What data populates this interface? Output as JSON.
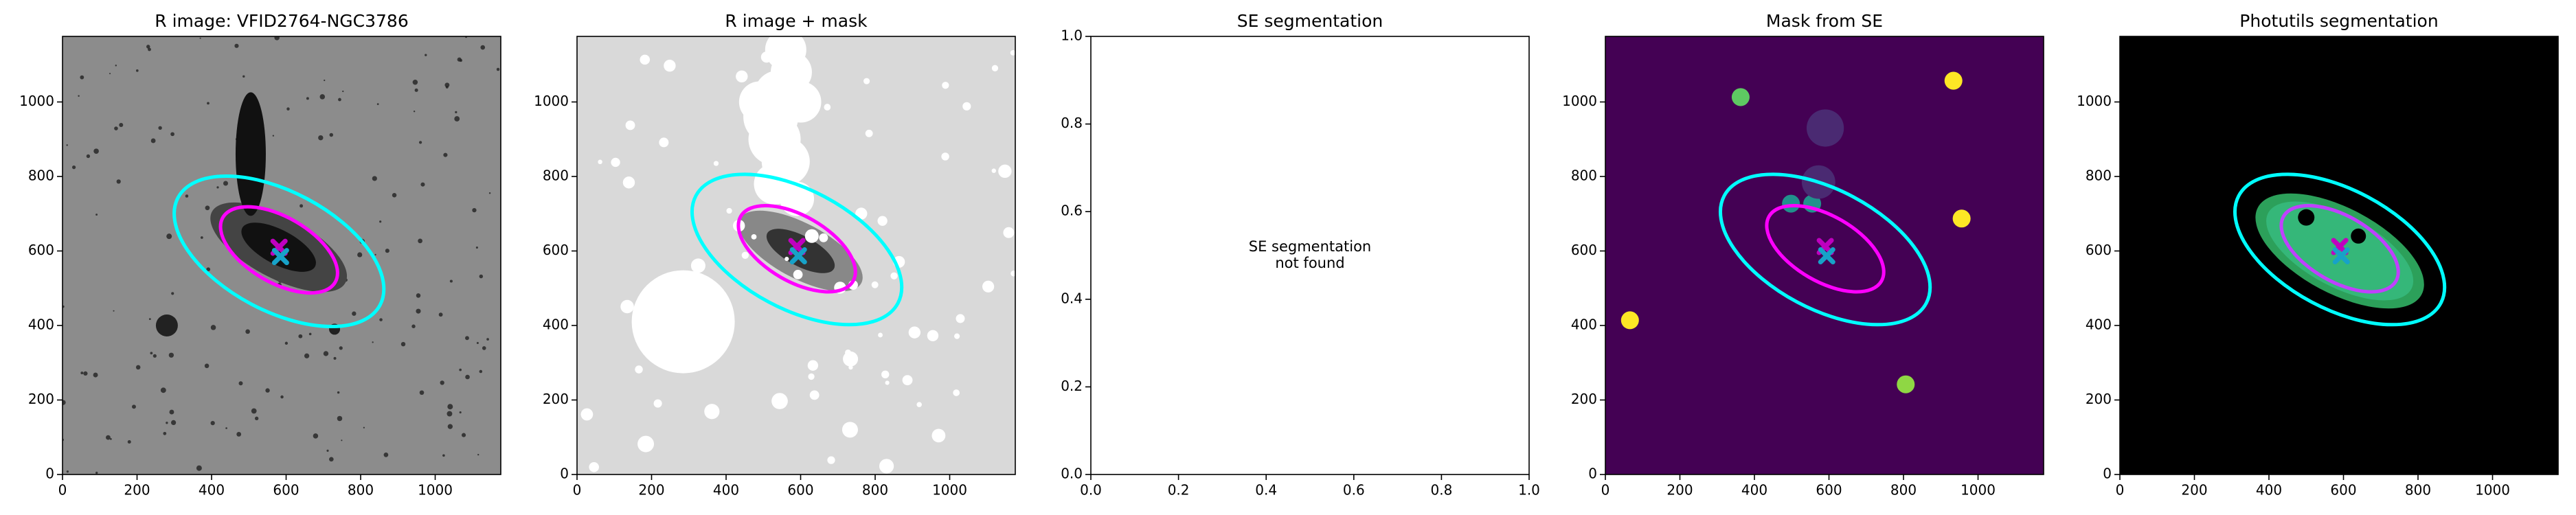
{
  "chart_data": [
    {
      "type": "image",
      "title": "R image: VFID2764-NGC3786",
      "background": "#8c8c8c",
      "xlim": [
        0,
        1176
      ],
      "ylim": [
        0,
        1176
      ],
      "xticks": [
        0,
        200,
        400,
        600,
        800,
        1000
      ],
      "yticks": [
        0,
        200,
        400,
        600,
        800,
        1000
      ],
      "ellipses": [
        {
          "x": 581,
          "y": 599,
          "a": 307,
          "b": 160,
          "angle": -28,
          "color": "#00ffff"
        },
        {
          "x": 581,
          "y": 603,
          "a": 174,
          "b": 88,
          "angle": -30,
          "color": "#ff00ff"
        }
      ],
      "markers": [
        {
          "x": 581,
          "y": 610,
          "color": "#bf00bf"
        },
        {
          "x": 585,
          "y": 585,
          "color": "#17a2c8"
        }
      ]
    },
    {
      "type": "image",
      "title": "R image + mask",
      "background": "#d9d9d9",
      "xlim": [
        0,
        1176
      ],
      "ylim": [
        0,
        1176
      ],
      "xticks": [
        0,
        200,
        400,
        600,
        800,
        1000
      ],
      "yticks": [
        0,
        200,
        400,
        600,
        800,
        1000
      ],
      "ellipses": [
        {
          "x": 590,
          "y": 604,
          "a": 307,
          "b": 160,
          "angle": -28,
          "color": "#00ffff"
        },
        {
          "x": 590,
          "y": 606,
          "a": 174,
          "b": 88,
          "angle": -30,
          "color": "#ff00ff"
        }
      ],
      "markers": [
        {
          "x": 590,
          "y": 612,
          "color": "#bf00bf"
        },
        {
          "x": 594,
          "y": 587,
          "color": "#17a2c8"
        }
      ]
    },
    {
      "type": "blank",
      "title": "SE segmentation",
      "annotation": [
        "SE segmentation",
        "not found"
      ],
      "xlim": [
        0,
        1
      ],
      "ylim": [
        0,
        1
      ],
      "xticks": [
        {
          "value": 0,
          "label": "0.0"
        },
        0.2,
        0.4,
        0.6,
        0.8,
        {
          "value": 1,
          "label": "1.0"
        }
      ],
      "yticks": [
        {
          "value": 0,
          "label": "0.0"
        },
        0.2,
        0.4,
        0.6,
        0.8,
        {
          "value": 1,
          "label": "1.0"
        }
      ]
    },
    {
      "type": "image",
      "title": "Mask from SE",
      "background": "#440154",
      "xlim": [
        0,
        1176
      ],
      "ylim": [
        0,
        1176
      ],
      "xticks": [
        0,
        200,
        400,
        600,
        800,
        1000
      ],
      "yticks": [
        0,
        200,
        400,
        600,
        800,
        1000
      ],
      "circles": [
        {
          "x": 934,
          "y": 1057,
          "r": 24,
          "color": "#fde725"
        },
        {
          "x": 363,
          "y": 1013,
          "r": 24,
          "color": "#5ec962"
        },
        {
          "x": 956,
          "y": 687,
          "r": 24,
          "color": "#fde725"
        },
        {
          "x": 66,
          "y": 414,
          "r": 24,
          "color": "#fde725"
        },
        {
          "x": 806,
          "y": 242,
          "r": 24,
          "color": "#8fd744"
        },
        {
          "x": 498,
          "y": 727,
          "r": 24,
          "color": "#21918c"
        },
        {
          "x": 555,
          "y": 727,
          "r": 24,
          "color": "#21918c"
        },
        {
          "x": 590,
          "y": 930,
          "r": 50,
          "color": "#4a2a72"
        },
        {
          "x": 572,
          "y": 785,
          "r": 45,
          "color": "#4a2a72"
        }
      ],
      "ellipses": [
        {
          "x": 590,
          "y": 604,
          "a": 307,
          "b": 160,
          "angle": -28,
          "color": "#00ffff"
        },
        {
          "x": 590,
          "y": 606,
          "a": 174,
          "b": 88,
          "angle": -30,
          "color": "#ff00ff"
        }
      ],
      "markers": [
        {
          "x": 590,
          "y": 612,
          "color": "#bf00bf"
        },
        {
          "x": 594,
          "y": 587,
          "color": "#17a2c8"
        }
      ]
    },
    {
      "type": "image",
      "title": "Photutils segmentation",
      "background": "#000000",
      "xlim": [
        0,
        1176
      ],
      "ylim": [
        0,
        1176
      ],
      "xticks": [
        0,
        200,
        400,
        600,
        800,
        1000
      ],
      "yticks": [
        0,
        200,
        400,
        600,
        800,
        1000
      ],
      "ellipses": [
        {
          "x": 590,
          "y": 604,
          "a": 307,
          "b": 160,
          "angle": -28,
          "color": "#00ffff"
        },
        {
          "x": 590,
          "y": 606,
          "a": 174,
          "b": 88,
          "angle": -30,
          "color": "#c040ff"
        }
      ],
      "markers": [
        {
          "x": 590,
          "y": 612,
          "color": "#bf00bf"
        },
        {
          "x": 594,
          "y": 587,
          "color": "#17a2c8"
        }
      ]
    }
  ]
}
